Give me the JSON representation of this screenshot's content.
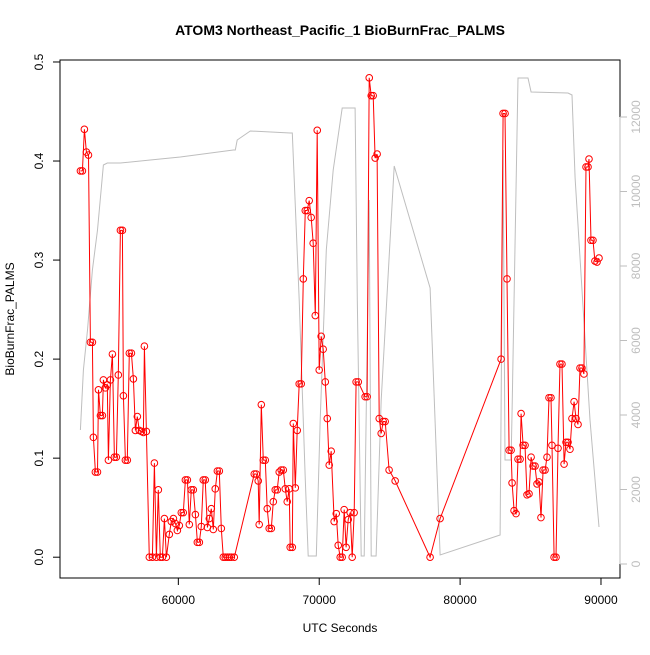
{
  "chart_data": {
    "type": "line",
    "title": "ATOM3 Northeast_Pacific_1 BioBurnFrac_PALMS",
    "xlabel": "UTC Seconds",
    "ylabel": "BioBurnFrac_PALMS",
    "xlim": [
      51600,
      91350
    ],
    "xticks": [
      60000,
      70000,
      80000,
      90000
    ],
    "ylim": [
      -0.021,
      0.502
    ],
    "yticks": [
      {
        "value": 0,
        "label": "0.0"
      },
      0.1,
      0.2,
      0.3,
      0.4,
      0.5
    ],
    "y2lim": [
      -376,
      13530
    ],
    "y2ticks": [
      0,
      2000,
      4000,
      6000,
      8000,
      10000,
      12000
    ],
    "series": [
      {
        "color": "#ff0000",
        "markers": true,
        "x": [
          53050,
          53190,
          53330,
          53475,
          53620,
          53760,
          53900,
          53970,
          54110,
          54260,
          54330,
          54470,
          54610,
          54680,
          54820,
          54960,
          55035,
          55180,
          55320,
          55460,
          55600,
          55740,
          55890,
          56030,
          56100,
          56240,
          56380,
          56520,
          56670,
          56810,
          56950,
          57090,
          57230,
          57380,
          57520,
          57590,
          57730,
          57940,
          58160,
          58300,
          58440,
          58580,
          58720,
          58870,
          59010,
          59150,
          59360,
          59500,
          59650,
          59790,
          59930,
          60070,
          60210,
          60350,
          60500,
          60640,
          60780,
          60920,
          61060,
          61210,
          61350,
          61490,
          61630,
          61770,
          61910,
          62060,
          62200,
          62340,
          62480,
          62620,
          62770,
          62910,
          63050,
          63190,
          63330,
          63480,
          63620,
          63760,
          63970,
          65390,
          65530,
          65670,
          65740,
          65890,
          66030,
          66170,
          66310,
          66450,
          66600,
          66740,
          66880,
          67020,
          67160,
          67300,
          67450,
          67590,
          67730,
          67870,
          67940,
          68090,
          68160,
          68300,
          68440,
          68580,
          68720,
          68870,
          69010,
          69150,
          69290,
          69430,
          69570,
          69720,
          69860,
          70000,
          70140,
          70280,
          70430,
          70570,
          70710,
          70850,
          71060,
          71210,
          71350,
          71490,
          71630,
          71770,
          71910,
          72060,
          72200,
          72340,
          72480,
          72620,
          72770,
          73260,
          73400,
          73550,
          73690,
          73830,
          73970,
          74110,
          74260,
          74400,
          74540,
          74680,
          74960,
          75390,
          77870,
          78580,
          82910,
          83050,
          83190,
          83330,
          83480,
          83620,
          83690,
          83830,
          83970,
          84110,
          84260,
          84330,
          84470,
          84610,
          84750,
          84890,
          85040,
          85180,
          85320,
          85460,
          85600,
          85740,
          85890,
          86030,
          86170,
          86310,
          86450,
          86520,
          86670,
          86810,
          86950,
          87090,
          87230,
          87380,
          87520,
          87660,
          87800,
          87940,
          88090,
          88230,
          88370,
          88510,
          88650,
          88790,
          88940,
          89080,
          89150,
          89290,
          89430,
          89570,
          89720,
          89860
        ],
        "values": [
          0.39,
          0.39,
          0.432,
          0.409,
          0.406,
          0.217,
          0.217,
          0.121,
          0.086,
          0.086,
          0.169,
          0.143,
          0.143,
          0.179,
          0.171,
          0.174,
          0.098,
          0.179,
          0.205,
          0.101,
          0.101,
          0.184,
          0.33,
          0.33,
          0.163,
          0.098,
          0.098,
          0.206,
          0.206,
          0.18,
          0.128,
          0.142,
          0.128,
          0.127,
          0.126,
          0.213,
          0.127,
          0,
          0,
          0.095,
          0,
          0.068,
          0,
          0,
          0.039,
          0,
          0.023,
          0.036,
          0.039,
          0.034,
          0.027,
          0.032,
          0.045,
          0.045,
          0.078,
          0.078,
          0.033,
          0.068,
          0.068,
          0.043,
          0.015,
          0.015,
          0.031,
          0.078,
          0.078,
          0.03,
          0.039,
          0.049,
          0.028,
          0.069,
          0.087,
          0.087,
          0.029,
          0,
          0,
          0,
          0,
          0,
          0,
          0.084,
          0.084,
          0.077,
          0.033,
          0.154,
          0.098,
          0.098,
          0.049,
          0.029,
          0.029,
          0.056,
          0.068,
          0.068,
          0.086,
          0.088,
          0.088,
          0.069,
          0.056,
          0.069,
          0.01,
          0.01,
          0.135,
          0.07,
          0.128,
          0.175,
          0.175,
          0.281,
          0.35,
          0.35,
          0.36,
          0.343,
          0.317,
          0.244,
          0.431,
          0.189,
          0.223,
          0.21,
          0.177,
          0.14,
          0.093,
          0.107,
          0.036,
          0.044,
          0.012,
          0,
          0,
          0.048,
          0.01,
          0.038,
          0.045,
          0,
          0.045,
          0.177,
          0.177,
          0.162,
          0.162,
          0.484,
          0.466,
          0.466,
          0.403,
          0.407,
          0.14,
          0.125,
          0.137,
          0.137,
          0.088,
          0.077,
          0,
          0.039,
          0.2,
          0.448,
          0.448,
          0.281,
          0.108,
          0.108,
          0.075,
          0.047,
          0.044,
          0.099,
          0.099,
          0.145,
          0.113,
          0.113,
          0.063,
          0.064,
          0.101,
          0.092,
          0.092,
          0.074,
          0.076,
          0.04,
          0.088,
          0.088,
          0.101,
          0.161,
          0.161,
          0.113,
          0,
          0,
          0.11,
          0.195,
          0.195,
          0.094,
          0.116,
          0.116,
          0.109,
          0.14,
          0.157,
          0.14,
          0.134,
          0.191,
          0.191,
          0.185,
          0.394,
          0.394,
          0.402,
          0.32,
          0.32,
          0.299,
          0.298,
          0.302
        ]
      },
      {
        "color": "#bebebe",
        "axis": "y2",
        "x": [
          53050,
          53260,
          53550,
          53900,
          54260,
          54680,
          54960,
          55890,
          58010,
          60140,
          63900,
          64040,
          64180,
          65110,
          67940,
          68090,
          68580,
          69010,
          69220,
          69790,
          70070,
          70500,
          70990,
          71630,
          72550,
          72700,
          72980,
          73190,
          73550,
          73690,
          74040,
          74400,
          75320,
          77870,
          78580,
          82840,
          83050,
          83190,
          83620,
          83690,
          84110,
          84820,
          85040,
          87660,
          87940,
          88160,
          89220,
          89860
        ],
        "values": [
          3597,
          5208,
          6282,
          7893,
          8966,
          10711,
          10765,
          10765,
          10846,
          10926,
          11114,
          11114,
          11383,
          11624,
          11570,
          11570,
          7087,
          2255,
          215,
          215,
          3866,
          8430,
          10577,
          12242,
          12242,
          7087,
          215,
          215,
          9772,
          215,
          215,
          4403,
          10685,
          7409,
          242,
          779,
          11114,
          2792,
          2792,
          4134,
          13047,
          13047,
          12671,
          12644,
          12590,
          10362,
          3866,
          993
        ]
      }
    ]
  }
}
